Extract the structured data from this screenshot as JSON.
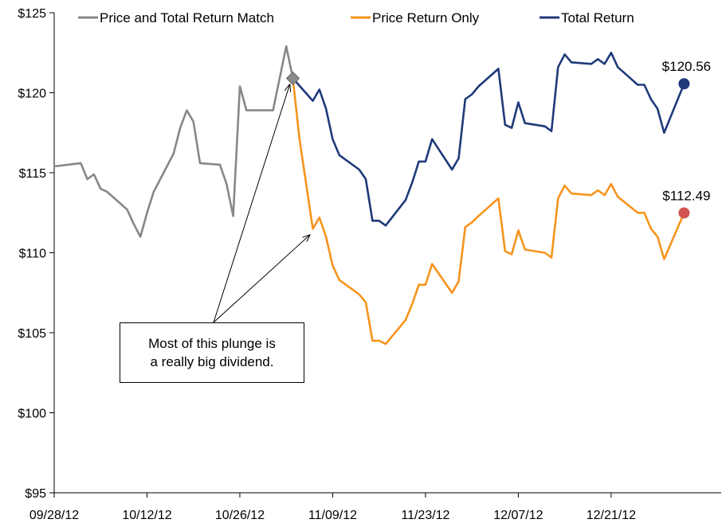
{
  "chart_data": {
    "type": "line",
    "x_tick_labels": [
      "09/28/12",
      "10/12/12",
      "10/26/12",
      "11/09/12",
      "11/23/12",
      "12/07/12",
      "12/21/12"
    ],
    "y_tick_labels": [
      "$95",
      "$100",
      "$105",
      "$110",
      "$115",
      "$120",
      "$125"
    ],
    "ylim": [
      95,
      125
    ],
    "grid": false,
    "legend_position": "top",
    "series": [
      {
        "name": "Price and Total Return Match",
        "color": "#878787",
        "points": [
          [
            "2012-09-28",
            115.4
          ],
          [
            "2012-10-02",
            115.6
          ],
          [
            "2012-10-03",
            114.6
          ],
          [
            "2012-10-04",
            114.9
          ],
          [
            "2012-10-05",
            114.0
          ],
          [
            "2012-10-06",
            113.8
          ],
          [
            "2012-10-09",
            112.7
          ],
          [
            "2012-10-10",
            111.8
          ],
          [
            "2012-10-11",
            111.0
          ],
          [
            "2012-10-12",
            112.5
          ],
          [
            "2012-10-13",
            113.8
          ],
          [
            "2012-10-16",
            116.2
          ],
          [
            "2012-10-17",
            117.8
          ],
          [
            "2012-10-18",
            118.9
          ],
          [
            "2012-10-19",
            118.2
          ],
          [
            "2012-10-20",
            115.6
          ],
          [
            "2012-10-23",
            115.5
          ],
          [
            "2012-10-24",
            114.3
          ],
          [
            "2012-10-25",
            112.3
          ],
          [
            "2012-10-26",
            120.4
          ],
          [
            "2012-10-27",
            118.9
          ],
          [
            "2012-10-31",
            118.9
          ],
          [
            "2012-11-01",
            120.9
          ],
          [
            "2012-11-02",
            122.9
          ],
          [
            "2012-11-03",
            120.9
          ]
        ]
      },
      {
        "name": "Price Return Only",
        "color": "#F7941D",
        "points": [
          [
            "2012-11-03",
            120.9
          ],
          [
            "2012-11-04",
            117.1
          ],
          [
            "2012-11-06",
            111.5
          ],
          [
            "2012-11-07",
            112.2
          ],
          [
            "2012-11-08",
            111.0
          ],
          [
            "2012-11-09",
            109.2
          ],
          [
            "2012-11-10",
            108.3
          ],
          [
            "2012-11-13",
            107.4
          ],
          [
            "2012-11-14",
            106.9
          ],
          [
            "2012-11-15",
            104.5
          ],
          [
            "2012-11-16",
            104.5
          ],
          [
            "2012-11-17",
            104.3
          ],
          [
            "2012-11-20",
            105.8
          ],
          [
            "2012-11-21",
            106.8
          ],
          [
            "2012-11-22",
            108.0
          ],
          [
            "2012-11-23",
            108.0
          ],
          [
            "2012-11-24",
            109.3
          ],
          [
            "2012-11-27",
            107.5
          ],
          [
            "2012-11-28",
            108.2
          ],
          [
            "2012-11-29",
            111.6
          ],
          [
            "2012-11-30",
            111.9
          ],
          [
            "2012-12-01",
            112.3
          ],
          [
            "2012-12-04",
            113.4
          ],
          [
            "2012-12-05",
            110.1
          ],
          [
            "2012-12-06",
            109.9
          ],
          [
            "2012-12-07",
            111.4
          ],
          [
            "2012-12-08",
            110.2
          ],
          [
            "2012-12-11",
            110.0
          ],
          [
            "2012-12-12",
            109.7
          ],
          [
            "2012-12-13",
            113.4
          ],
          [
            "2012-12-14",
            114.2
          ],
          [
            "2012-12-15",
            113.7
          ],
          [
            "2012-12-18",
            113.6
          ],
          [
            "2012-12-19",
            113.9
          ],
          [
            "2012-12-20",
            113.6
          ],
          [
            "2012-12-21",
            114.3
          ],
          [
            "2012-12-22",
            113.5
          ],
          [
            "2012-12-25",
            112.5
          ],
          [
            "2012-12-26",
            112.5
          ],
          [
            "2012-12-27",
            111.5
          ],
          [
            "2012-12-28",
            111.0
          ],
          [
            "2012-12-29",
            109.6
          ],
          [
            "2013-01-01",
            112.49
          ]
        ]
      },
      {
        "name": "Total Return",
        "color": "#1F3A7A",
        "points": [
          [
            "2012-11-03",
            120.9
          ],
          [
            "2012-11-06",
            119.5
          ],
          [
            "2012-11-07",
            120.2
          ],
          [
            "2012-11-08",
            119.0
          ],
          [
            "2012-11-09",
            117.1
          ],
          [
            "2012-11-10",
            116.1
          ],
          [
            "2012-11-13",
            115.2
          ],
          [
            "2012-11-14",
            114.6
          ],
          [
            "2012-11-15",
            112.0
          ],
          [
            "2012-11-16",
            112.0
          ],
          [
            "2012-11-17",
            111.7
          ],
          [
            "2012-11-20",
            113.3
          ],
          [
            "2012-11-21",
            114.4
          ],
          [
            "2012-11-22",
            115.7
          ],
          [
            "2012-11-23",
            115.7
          ],
          [
            "2012-11-24",
            117.1
          ],
          [
            "2012-11-27",
            115.2
          ],
          [
            "2012-11-28",
            115.9
          ],
          [
            "2012-11-29",
            119.6
          ],
          [
            "2012-11-30",
            119.9
          ],
          [
            "2012-12-01",
            120.4
          ],
          [
            "2012-12-04",
            121.5
          ],
          [
            "2012-12-05",
            118.0
          ],
          [
            "2012-12-06",
            117.8
          ],
          [
            "2012-12-07",
            119.4
          ],
          [
            "2012-12-08",
            118.1
          ],
          [
            "2012-12-11",
            117.9
          ],
          [
            "2012-12-12",
            117.6
          ],
          [
            "2012-12-13",
            121.6
          ],
          [
            "2012-12-14",
            122.4
          ],
          [
            "2012-12-15",
            121.9
          ],
          [
            "2012-12-18",
            121.8
          ],
          [
            "2012-12-19",
            122.1
          ],
          [
            "2012-12-20",
            121.8
          ],
          [
            "2012-12-21",
            122.5
          ],
          [
            "2012-12-22",
            121.6
          ],
          [
            "2012-12-25",
            120.5
          ],
          [
            "2012-12-26",
            120.5
          ],
          [
            "2012-12-27",
            119.6
          ],
          [
            "2012-12-28",
            119.0
          ],
          [
            "2012-12-29",
            117.5
          ],
          [
            "2013-01-01",
            120.56
          ]
        ]
      }
    ],
    "end_labels": [
      {
        "series": "Total Return",
        "text": "$120.56",
        "value": 120.56,
        "color": "#1F3A7A"
      },
      {
        "series": "Price Return Only",
        "text": "$112.49",
        "value": 112.49,
        "color": "#D2544F"
      }
    ],
    "annotation": {
      "lines": [
        "Most of this plunge  is",
        "a really big dividend."
      ],
      "targets": [
        {
          "x": "2012-11-03",
          "y": 120.9
        },
        {
          "x": "2012-11-06",
          "y": 111.5
        }
      ]
    }
  }
}
